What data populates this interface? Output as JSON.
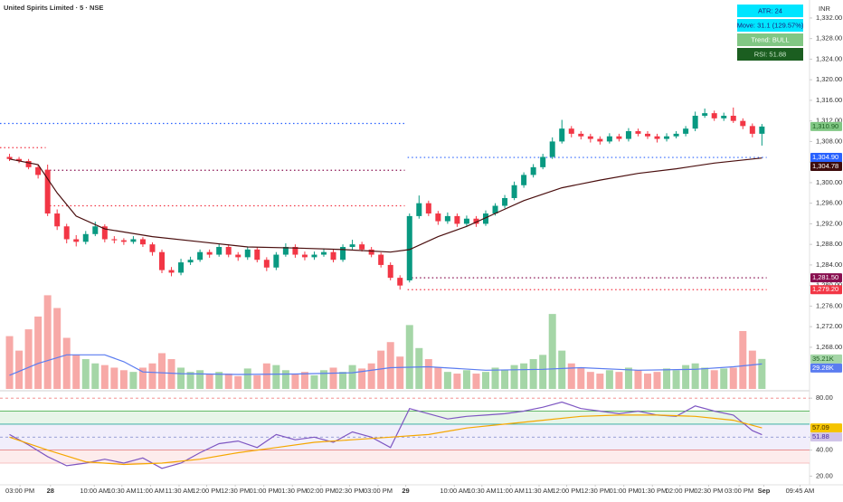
{
  "header": {
    "title": "United Spirits Limited · 5 · NSE",
    "currency": "INR"
  },
  "info_boxes": [
    {
      "text": "ATR: 24",
      "background": "#00e5ff",
      "color": "#1a237e"
    },
    {
      "text": "Move: 31.1 (129.57%)",
      "background": "#00e5ff",
      "color": "#1a237e"
    },
    {
      "text": "Trend: BULL",
      "background": "#81c784",
      "color": "#ffffff"
    },
    {
      "text": "RSI: 51.88",
      "background": "#1b5e20",
      "color": "#c8e6c9"
    }
  ],
  "chart_data": [
    {
      "type": "candlestick",
      "xlim": [
        -1,
        84
      ],
      "ylim": [
        1259.9,
        1335.5
      ],
      "up_color": "#089981",
      "down_color": "#f23645",
      "open": [
        1305.0,
        1304.6,
        1304.2,
        1303.0,
        1302.5,
        1294.0,
        1291.5,
        1289.0,
        1288.5,
        1290.0,
        1291.5,
        1289.0,
        1288.8,
        1288.5,
        1289.0,
        1288.0,
        1286.5,
        1283.0,
        1282.5,
        1284.5,
        1285.0,
        1286.5,
        1286.0,
        1287.5,
        1286.0,
        1285.5,
        1287.0,
        1285.0,
        1283.5,
        1286.0,
        1287.5,
        1286.0,
        1285.5,
        1286.0,
        1286.5,
        1285.0,
        1287.5,
        1288.0,
        1287.0,
        1286.0,
        1284.0,
        1281.5,
        1281.0,
        1293.5,
        1296.0,
        1294.0,
        1292.5,
        1293.5,
        1292.0,
        1293.0,
        1292.0,
        1294.0,
        1295.5,
        1297.0,
        1299.5,
        1301.5,
        1303.0,
        1305.0,
        1308.0,
        1310.5,
        1309.5,
        1309.0,
        1308.5,
        1308.0,
        1309.0,
        1308.5,
        1310.0,
        1309.5,
        1309.0,
        1308.5,
        1309.0,
        1309.5,
        1310.5,
        1313.0,
        1313.5,
        1312.5,
        1313.0,
        1312.0,
        1311.0,
        1309.5
      ],
      "high": [
        1305.6,
        1305.0,
        1304.6,
        1303.4,
        1303.5,
        1294.8,
        1292.0,
        1289.8,
        1290.6,
        1292.4,
        1291.9,
        1289.6,
        1289.2,
        1289.6,
        1289.4,
        1288.4,
        1287.0,
        1283.6,
        1285.2,
        1285.6,
        1287.0,
        1287.0,
        1288.2,
        1288.0,
        1286.5,
        1287.6,
        1287.4,
        1285.5,
        1286.5,
        1288.2,
        1288.0,
        1286.6,
        1286.6,
        1287.2,
        1287.0,
        1288.0,
        1288.9,
        1288.5,
        1287.5,
        1286.4,
        1284.5,
        1282.0,
        1294.0,
        1297.5,
        1296.5,
        1294.5,
        1294.2,
        1294.0,
        1293.6,
        1293.5,
        1294.6,
        1296.0,
        1297.6,
        1300.2,
        1302.0,
        1303.6,
        1305.6,
        1308.8,
        1312.2,
        1311.0,
        1310.0,
        1309.5,
        1309.0,
        1309.6,
        1309.5,
        1310.6,
        1310.5,
        1310.0,
        1309.5,
        1309.6,
        1310.0,
        1311.0,
        1313.8,
        1314.4,
        1314.0,
        1313.6,
        1314.6,
        1312.5,
        1311.5,
        1311.4
      ],
      "low": [
        1304.2,
        1303.8,
        1302.6,
        1300.8,
        1293.5,
        1290.8,
        1288.2,
        1287.6,
        1288.0,
        1289.6,
        1288.4,
        1288.2,
        1287.9,
        1288.1,
        1287.5,
        1285.8,
        1282.4,
        1281.8,
        1282.0,
        1284.0,
        1284.6,
        1285.4,
        1285.6,
        1285.5,
        1284.8,
        1285.0,
        1284.5,
        1282.8,
        1283.0,
        1285.6,
        1285.4,
        1284.9,
        1285.0,
        1285.6,
        1284.5,
        1284.6,
        1287.0,
        1286.6,
        1285.5,
        1283.5,
        1281.0,
        1279.2,
        1280.6,
        1293.0,
        1293.5,
        1291.8,
        1292.0,
        1291.4,
        1291.5,
        1291.4,
        1291.6,
        1293.6,
        1295.0,
        1296.6,
        1299.0,
        1301.0,
        1302.6,
        1304.6,
        1307.6,
        1308.8,
        1308.4,
        1307.8,
        1307.4,
        1307.6,
        1308.0,
        1308.0,
        1309.0,
        1308.5,
        1307.8,
        1308.0,
        1308.6,
        1309.0,
        1310.0,
        1312.6,
        1312.0,
        1312.0,
        1311.6,
        1310.4,
        1308.8,
        1307.2
      ],
      "close": [
        1304.6,
        1304.2,
        1303.0,
        1301.5,
        1294.0,
        1291.5,
        1289.0,
        1288.5,
        1290.0,
        1291.5,
        1289.0,
        1288.8,
        1288.5,
        1289.0,
        1288.0,
        1286.5,
        1283.0,
        1282.5,
        1284.5,
        1285.0,
        1286.5,
        1286.0,
        1287.5,
        1286.0,
        1285.5,
        1287.0,
        1285.0,
        1283.5,
        1286.0,
        1287.5,
        1286.0,
        1285.5,
        1286.0,
        1286.5,
        1285.0,
        1287.5,
        1288.0,
        1287.0,
        1286.0,
        1284.0,
        1281.5,
        1280.0,
        1293.5,
        1296.0,
        1294.0,
        1292.5,
        1293.5,
        1292.0,
        1293.0,
        1292.0,
        1294.0,
        1295.5,
        1297.0,
        1299.5,
        1301.5,
        1303.0,
        1305.0,
        1308.0,
        1310.5,
        1309.5,
        1309.0,
        1308.5,
        1308.0,
        1309.0,
        1308.5,
        1310.0,
        1309.5,
        1309.0,
        1308.5,
        1309.0,
        1309.5,
        1310.5,
        1313.0,
        1313.5,
        1312.5,
        1313.0,
        1312.0,
        1311.0,
        1309.5,
        1310.9
      ],
      "overlays": [
        {
          "color": "#4a0e0e",
          "x": [
            0,
            3,
            5,
            7,
            10,
            15,
            20,
            25,
            30,
            35,
            40,
            42,
            45,
            48,
            51,
            54,
            58,
            62,
            66,
            70,
            74,
            79
          ],
          "values": [
            1304.6,
            1303.5,
            1298,
            1293.5,
            1291,
            1289.5,
            1288.5,
            1287.5,
            1287.3,
            1287,
            1286.5,
            1287,
            1289.5,
            1291.5,
            1294,
            1296.5,
            1299,
            1300.5,
            1301.8,
            1302.7,
            1303.8,
            1304.78
          ]
        }
      ],
      "levels": [
        {
          "value": 1311.5,
          "from": -1,
          "to": 41.5,
          "color": "#2962ff"
        },
        {
          "value": 1306.8,
          "from": -1,
          "to": 3.8,
          "color": "#f23645"
        },
        {
          "value": 1302.4,
          "from": 3.8,
          "to": 41.5,
          "color": "#880e4f"
        },
        {
          "value": 1295.5,
          "from": 3.8,
          "to": 41.5,
          "color": "#f23645"
        },
        {
          "value": 1304.9,
          "from": 41.8,
          "to": 79.5,
          "color": "#2962ff"
        },
        {
          "value": 1281.5,
          "from": 41.8,
          "to": 79.5,
          "color": "#880e4f"
        },
        {
          "value": 1279.2,
          "from": 41.8,
          "to": 79.5,
          "color": "#f23645"
        }
      ],
      "yticks": [
        {
          "value": 1268,
          "label": "1,268.00"
        },
        {
          "value": 1272,
          "label": "1,272.00"
        },
        {
          "value": 1276,
          "label": "1,276.00"
        },
        {
          "value": 1280,
          "label": "1,280.00"
        },
        {
          "value": 1284,
          "label": "1,284.00"
        },
        {
          "value": 1288,
          "label": "1,288.00"
        },
        {
          "value": 1292,
          "label": "1,292.00"
        },
        {
          "value": 1296,
          "label": "1,296.00"
        },
        {
          "value": 1300,
          "label": "1,300.00"
        },
        {
          "value": 1304,
          "label": "1,304.00"
        },
        {
          "value": 1308,
          "label": "1,308.00"
        },
        {
          "value": 1312,
          "label": "1,312.00"
        },
        {
          "value": 1316,
          "label": "1,316.00"
        },
        {
          "value": 1320,
          "label": "1,320.00"
        },
        {
          "value": 1324,
          "label": "1,324.00"
        },
        {
          "value": 1328,
          "label": "1,328.00"
        },
        {
          "value": 1332,
          "label": "1,332.00"
        }
      ],
      "axis_labels": [
        {
          "value": 1310.9,
          "label": "1,310.90",
          "background": "#81c784",
          "color": "#1b5e20"
        },
        {
          "value": 1304.9,
          "label": "1,304.90",
          "background": "#2962ff",
          "color": "#ffffff"
        },
        {
          "value": 1304.78,
          "label": "1,304.78",
          "background": "#3e0c0c",
          "color": "#ffffff"
        },
        {
          "value": 1281.5,
          "label": "1,281.50",
          "background": "#880e4f",
          "color": "#ffffff"
        },
        {
          "value": 1279.2,
          "label": "1,279.20",
          "background": "#f23645",
          "color": "#ffffff"
        }
      ]
    },
    {
      "type": "bar",
      "xlim": [
        -1,
        84
      ],
      "ylim": [
        0,
        120000
      ],
      "up_color": "#a5d6a7",
      "down_color": "#f7a9a7",
      "values": [
        62000,
        45000,
        70000,
        85000,
        110000,
        95000,
        60000,
        40000,
        35000,
        30000,
        28000,
        25000,
        22000,
        20000,
        25000,
        30000,
        42000,
        35000,
        25000,
        20000,
        22000,
        18000,
        20000,
        18000,
        15000,
        24000,
        16000,
        30000,
        28000,
        22000,
        18000,
        20000,
        16000,
        22000,
        25000,
        20000,
        28000,
        24000,
        30000,
        45000,
        55000,
        38000,
        75000,
        48000,
        35000,
        25000,
        20000,
        18000,
        22000,
        18000,
        20000,
        25000,
        22000,
        28000,
        30000,
        35000,
        40000,
        88000,
        45000,
        30000,
        25000,
        20000,
        18000,
        22000,
        20000,
        25000,
        22000,
        18000,
        20000,
        24000,
        22000,
        28000,
        30000,
        25000,
        22000,
        24000,
        25000,
        68000,
        45000,
        35210
      ],
      "overlays": [
        {
          "color": "#5b7cf0",
          "x": [
            0,
            3,
            6,
            10,
            12,
            14,
            18,
            24,
            30,
            36,
            40,
            44,
            50,
            56,
            60,
            66,
            72,
            76,
            79
          ],
          "values": [
            16000,
            30000,
            40000,
            40000,
            32000,
            20000,
            18000,
            17000,
            17500,
            19000,
            25000,
            26000,
            22000,
            23000,
            25000,
            22000,
            23000,
            26000,
            29280
          ]
        }
      ],
      "axis_labels": [
        {
          "value": 35210,
          "label": "35.21K",
          "background": "#a5d6a7",
          "color": "#1b5e20"
        },
        {
          "value": 29280,
          "label": "29.28K",
          "background": "#5b7cf0",
          "color": "#ffffff"
        }
      ]
    },
    {
      "type": "line",
      "xlim": [
        -1,
        84
      ],
      "ylim": [
        14,
        85
      ],
      "overlays": [
        {
          "color": "#7e57c2",
          "x": [
            0,
            2,
            4,
            6,
            8,
            10,
            12,
            14,
            16,
            18,
            20,
            22,
            24,
            26,
            28,
            30,
            32,
            34,
            36,
            38,
            40,
            42,
            44,
            46,
            48,
            50,
            52,
            54,
            56,
            58,
            60,
            62,
            64,
            66,
            68,
            70,
            72,
            74,
            76,
            78,
            79
          ],
          "values": [
            52,
            44,
            35,
            28,
            30,
            33,
            30,
            34,
            26,
            30,
            38,
            45,
            47,
            42,
            52,
            48,
            50,
            46,
            54,
            50,
            42,
            72,
            68,
            64,
            66,
            67,
            68,
            70,
            73,
            77,
            72,
            70,
            68,
            70,
            67,
            66,
            74,
            70,
            67,
            55,
            51.88
          ]
        },
        {
          "color": "#f5a700",
          "x": [
            0,
            4,
            8,
            12,
            16,
            20,
            24,
            28,
            32,
            36,
            40,
            44,
            48,
            52,
            56,
            60,
            64,
            68,
            72,
            76,
            79
          ],
          "values": [
            50,
            40,
            31,
            29,
            30,
            33,
            38,
            42,
            46,
            48,
            50,
            52,
            57,
            60,
            63,
            66,
            67,
            67,
            66,
            63,
            57.09
          ]
        }
      ],
      "bands": [
        {
          "from": 60,
          "to": 70,
          "color": "#e8f5e9"
        },
        {
          "from": 40,
          "to": 60,
          "color": "#f1eefb"
        },
        {
          "from": 30,
          "to": 40,
          "color": "#fdecec"
        }
      ],
      "hlines": [
        {
          "value": 80,
          "color": "#f08080",
          "dashed": true
        },
        {
          "value": 70,
          "color": "#4caf50",
          "dashed": false
        },
        {
          "value": 60,
          "color": "#26a69a",
          "dashed": false
        },
        {
          "value": 50,
          "color": "#7e86c9",
          "dashed": true
        },
        {
          "value": 40,
          "color": "#e57373",
          "dashed": false
        },
        {
          "value": 30,
          "color": "#f3b1b1",
          "dashed": false
        }
      ],
      "yticks": [
        {
          "value": 80,
          "label": "80.00"
        },
        {
          "value": 40,
          "label": "40.00"
        },
        {
          "value": 20,
          "label": "20.00"
        }
      ],
      "axis_labels": [
        {
          "value": 57.09,
          "label": "57.09",
          "background": "#f5c400",
          "color": "#3e2700"
        },
        {
          "value": 51.88,
          "label": "51.88",
          "background": "#d1c4e9",
          "color": "#4527a0"
        }
      ],
      "xticks": [
        {
          "value": 1.1,
          "label": "03:00 PM"
        },
        {
          "value": 4.3,
          "label": "28"
        },
        {
          "value": 8.9,
          "label": "10:00 AM"
        },
        {
          "value": 11.8,
          "label": "10:30 AM"
        },
        {
          "value": 14.8,
          "label": "11:00 AM"
        },
        {
          "value": 17.8,
          "label": "11:30 AM"
        },
        {
          "value": 20.7,
          "label": "12:00 PM"
        },
        {
          "value": 23.7,
          "label": "12:30 PM"
        },
        {
          "value": 26.7,
          "label": "01:00 PM"
        },
        {
          "value": 29.7,
          "label": "01:30 PM"
        },
        {
          "value": 32.7,
          "label": "02:00 PM"
        },
        {
          "value": 35.7,
          "label": "02:30 PM"
        },
        {
          "value": 38.7,
          "label": "03:00 PM"
        },
        {
          "value": 41.6,
          "label": "29"
        },
        {
          "value": 46.7,
          "label": "10:00 AM"
        },
        {
          "value": 49.6,
          "label": "10:30 AM"
        },
        {
          "value": 52.6,
          "label": "11:00 AM"
        },
        {
          "value": 55.6,
          "label": "11:30 AM"
        },
        {
          "value": 58.5,
          "label": "12:00 PM"
        },
        {
          "value": 61.5,
          "label": "12:30 PM"
        },
        {
          "value": 64.5,
          "label": "01:00 PM"
        },
        {
          "value": 67.5,
          "label": "01:30 PM"
        },
        {
          "value": 70.4,
          "label": "02:00 PM"
        },
        {
          "value": 73.4,
          "label": "02:30 PM"
        },
        {
          "value": 76.6,
          "label": "03:00 PM"
        },
        {
          "value": 79.2,
          "label": "Sep"
        },
        {
          "value": 83,
          "label": "09:45 AM"
        }
      ]
    }
  ]
}
